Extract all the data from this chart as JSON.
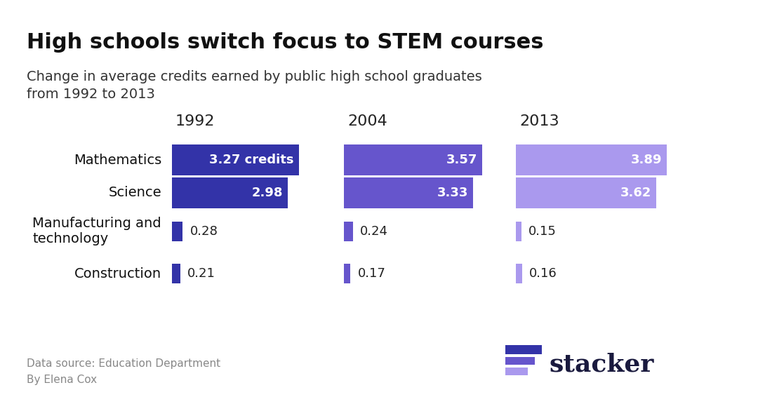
{
  "title": "High schools switch focus to STEM courses",
  "subtitle": "Change in average credits earned by public high school graduates\nfrom 1992 to 2013",
  "categories": [
    "Mathematics",
    "Science",
    "Manufacturing and\ntechnology",
    "Construction"
  ],
  "years": [
    "1992",
    "2004",
    "2013"
  ],
  "values": {
    "Mathematics": [
      3.27,
      3.57,
      3.89
    ],
    "Science": [
      2.98,
      3.33,
      3.62
    ],
    "Manufacturing and\ntechnology": [
      0.28,
      0.24,
      0.15
    ],
    "Construction": [
      0.21,
      0.17,
      0.16
    ]
  },
  "labels": {
    "Mathematics": [
      "3.27 credits",
      "3.57",
      "3.89"
    ],
    "Science": [
      "2.98",
      "3.33",
      "3.62"
    ],
    "Manufacturing and\ntechnology": [
      "0.28",
      "0.24",
      "0.15"
    ],
    "Construction": [
      "0.21",
      "0.17",
      "0.16"
    ]
  },
  "color_1992": "#3333a8",
  "color_2004": "#6655cc",
  "color_2013": "#aa99ee",
  "background_color": "#ffffff",
  "title_fontsize": 22,
  "subtitle_fontsize": 14,
  "source_text": "Data source: Education Department\nBy Elena Cox",
  "source_fontsize": 11,
  "year_label_fontsize": 16,
  "bar_label_fontsize": 13,
  "category_fontsize": 14,
  "logo_color_1": "#3333a8",
  "logo_color_2": "#6655cc",
  "logo_color_3": "#aa99ee",
  "stacker_color": "#1a1a3e"
}
